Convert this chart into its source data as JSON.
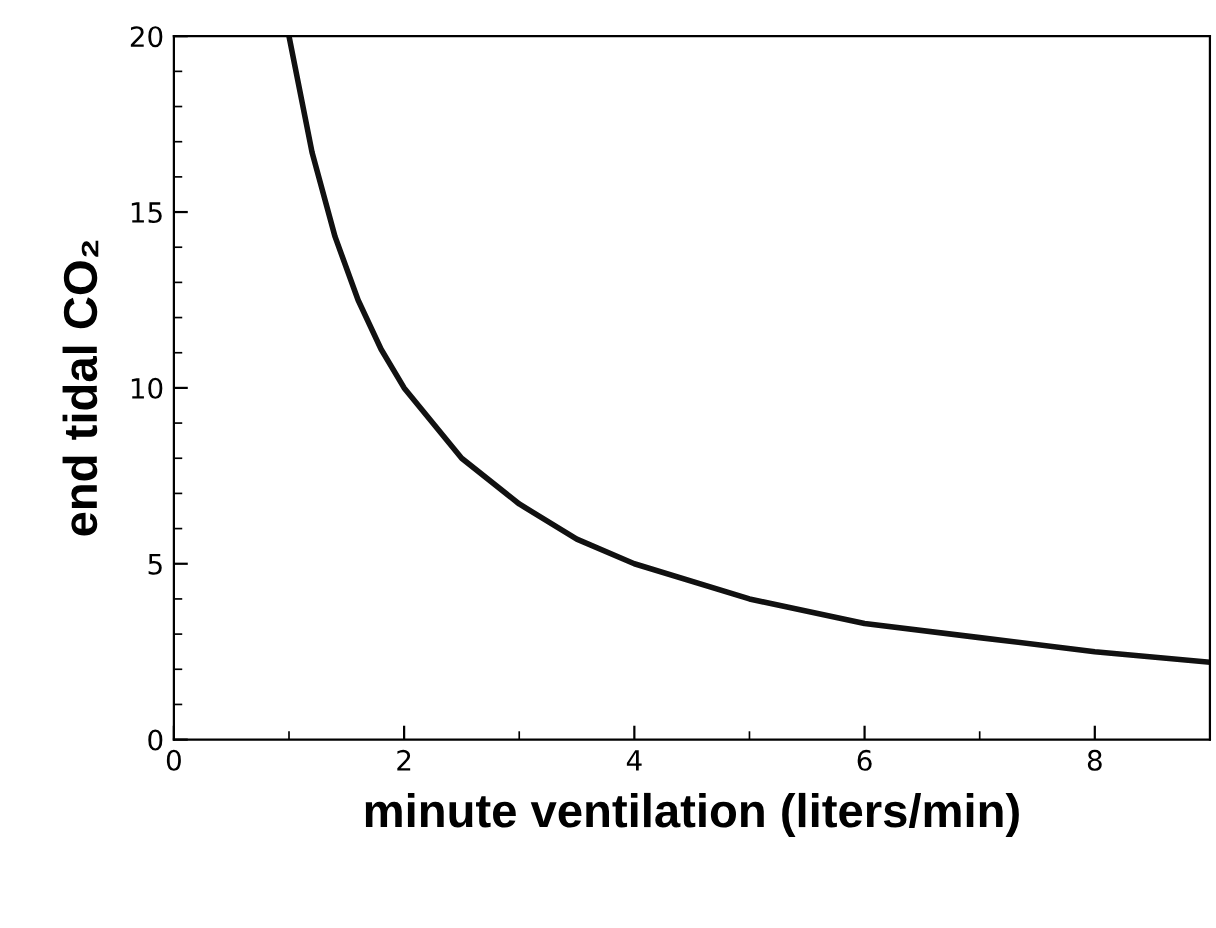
{
  "chart_data": {
    "type": "line",
    "xlabel": "minute ventilation (liters/min)",
    "ylabel": "end tidal CO₂",
    "x": [
      1,
      1.2,
      1.4,
      1.6,
      1.8,
      2,
      2.5,
      3,
      3.5,
      4,
      5,
      6,
      7,
      8,
      9
    ],
    "values": [
      20,
      16.7,
      14.3,
      12.5,
      11.1,
      10,
      8,
      6.7,
      5.7,
      5,
      4,
      3.3,
      2.9,
      2.5,
      2.2
    ],
    "color": "#111111",
    "xlim": [
      0,
      9
    ],
    "ylim": [
      0,
      20
    ],
    "xticks": [
      0,
      2,
      4,
      6,
      8
    ],
    "yticks": [
      0,
      5,
      10,
      15,
      20
    ],
    "grid": false,
    "legend": false,
    "marker": "none",
    "line_style": "solid"
  }
}
